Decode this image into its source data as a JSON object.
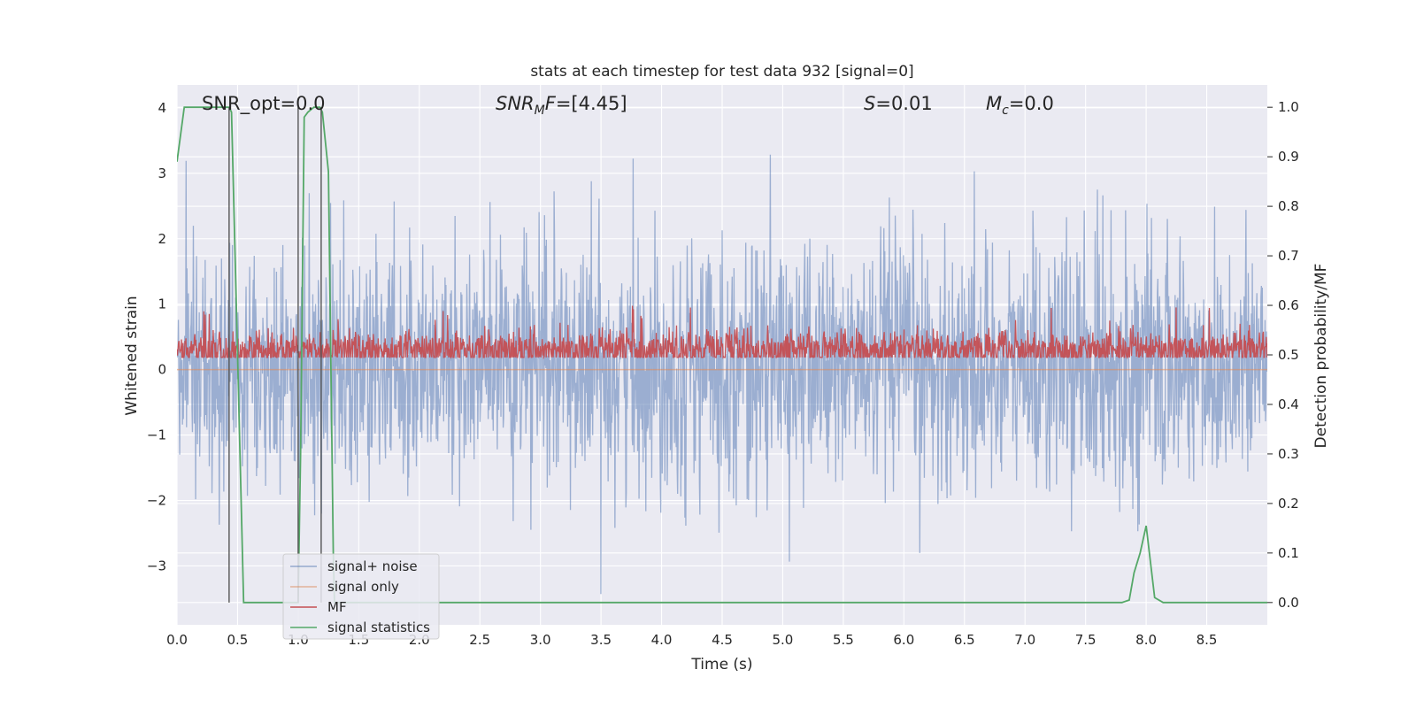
{
  "chart_data": {
    "type": "line",
    "title": "stats at each timestep for test data 932 [signal=0]",
    "xlabel": "Time (s)",
    "ylabel_left": "Whitened strain",
    "ylabel_right": "Detection probability/MF",
    "xlim": [
      0.0,
      9.0
    ],
    "ylim_left": [
      -3.9,
      4.35
    ],
    "ylim_right": [
      -0.045,
      1.045
    ],
    "x_ticks": [
      "0.0",
      "0.5",
      "1.0",
      "1.5",
      "2.0",
      "2.5",
      "3.0",
      "3.5",
      "4.0",
      "4.5",
      "5.0",
      "5.5",
      "6.0",
      "6.5",
      "7.0",
      "7.5",
      "8.0",
      "8.5"
    ],
    "y_ticks_left": [
      "−3",
      "−2",
      "−1",
      "0",
      "1",
      "2",
      "3",
      "4"
    ],
    "y_ticks_right": [
      "0.0",
      "0.1",
      "0.2",
      "0.3",
      "0.4",
      "0.5",
      "0.6",
      "0.7",
      "0.8",
      "0.9",
      "1.0"
    ],
    "grid": true,
    "legend_position": "lower-left",
    "annotations": {
      "snr_opt": "SNR_opt=0.0",
      "snr_mf_main": "SNR",
      "snr_mf_sub": "M",
      "snr_mf_rest": "F=[4.45]",
      "s_main": "S",
      "s_rest": "=0.01",
      "mc_main": "M",
      "mc_sub": "c",
      "mc_rest": "=0.0"
    },
    "series": [
      {
        "name": "signal+ noise",
        "color": "#4c72b0",
        "axis": "left",
        "description_stats": {
          "peak_max": 4.0,
          "peak_min": -3.6,
          "typical_band": [
            -1.5,
            1.7
          ]
        }
      },
      {
        "name": "signal only",
        "color": "#dd8452",
        "axis": "left",
        "values_constant": 0.0
      },
      {
        "name": "MF",
        "color": "#c44e52",
        "axis": "right",
        "typical_band": [
          0.47,
          0.56
        ],
        "peak_max": 0.605
      },
      {
        "name": "signal statistics",
        "color": "#55a868",
        "axis": "right",
        "x": [
          0.0,
          0.06,
          0.1,
          0.2,
          0.3,
          0.38,
          0.43,
          0.45,
          0.5,
          0.55,
          0.6,
          0.8,
          0.9,
          0.99,
          1.0,
          1.02,
          1.05,
          1.08,
          1.13,
          1.18,
          1.2,
          1.25,
          1.29,
          1.3,
          1.5,
          2.0,
          3.0,
          4.0,
          5.0,
          6.0,
          7.0,
          7.8,
          7.86,
          7.9,
          7.95,
          8.0,
          8.07,
          8.14,
          8.5,
          9.0
        ],
        "y": [
          0.89,
          1.0,
          1.0,
          1.0,
          1.0,
          1.0,
          1.0,
          0.99,
          0.5,
          0.0,
          0.0,
          0.0,
          0.0,
          0.0,
          0.0,
          0.3,
          0.98,
          0.99,
          1.0,
          1.0,
          0.99,
          0.87,
          0.1,
          0.0,
          0.0,
          0.0,
          0.0,
          0.0,
          0.0,
          0.0,
          0.0,
          0.0,
          0.005,
          0.06,
          0.1,
          0.155,
          0.01,
          0.0,
          0.0,
          0.0
        ]
      }
    ],
    "vertical_lines": [
      0.43,
      1.0,
      1.19
    ],
    "legend": [
      "signal+ noise",
      "signal only",
      "MF",
      "signal statistics"
    ],
    "colors": {
      "background": "#eaeaf2",
      "grid": "#ffffff",
      "vline": "#555555"
    }
  }
}
